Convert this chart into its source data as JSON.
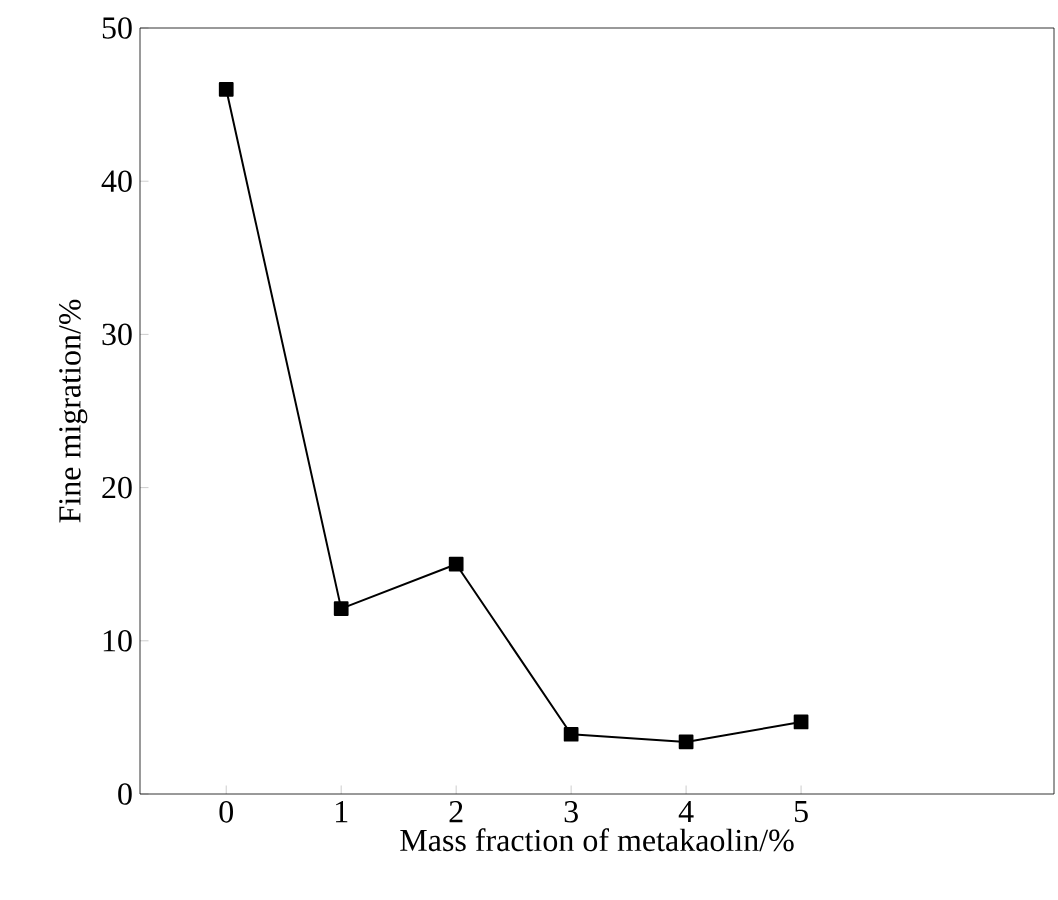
{
  "chart_data": {
    "type": "line",
    "xlabel": "Mass fraction of metakaolin/%",
    "ylabel": "Fine migration/%",
    "x": [
      0,
      1,
      2,
      3,
      4,
      5
    ],
    "series": [
      {
        "color": "#000000",
        "values": [
          46,
          12.1,
          15,
          3.9,
          3.4,
          4.7
        ]
      }
    ],
    "xlim": [
      -0.75,
      7.2
    ],
    "xticks": [
      0,
      1,
      2,
      3,
      4,
      5
    ],
    "ylim": [
      0,
      50
    ],
    "yticks": [
      0,
      10,
      20,
      30,
      40,
      50
    ],
    "marker": "square",
    "line_style": "solid"
  }
}
